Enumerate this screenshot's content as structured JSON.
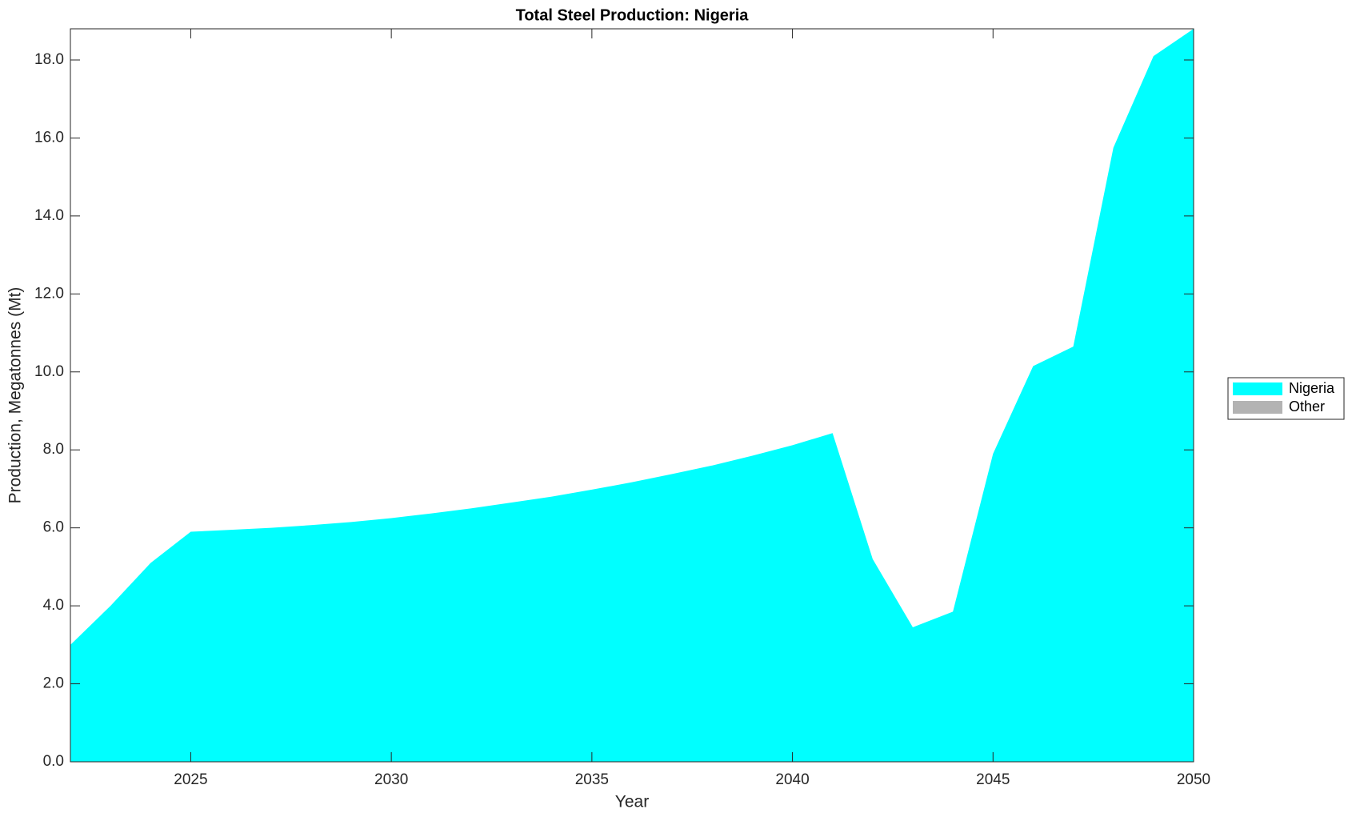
{
  "chart_data": {
    "type": "area",
    "title": "Total Steel Production: Nigeria",
    "xlabel": "Year",
    "ylabel": "Production, Megatonnes (Mt)",
    "x": [
      2022,
      2023,
      2024,
      2025,
      2026,
      2027,
      2028,
      2029,
      2030,
      2031,
      2032,
      2033,
      2034,
      2035,
      2036,
      2037,
      2038,
      2039,
      2040,
      2041,
      2042,
      2043,
      2044,
      2045,
      2046,
      2047,
      2048,
      2049,
      2050
    ],
    "series": [
      {
        "name": "Nigeria",
        "color": "#00ffff",
        "values": [
          3.0,
          4.0,
          5.1,
          5.9,
          5.95,
          6.0,
          6.07,
          6.15,
          6.25,
          6.37,
          6.5,
          6.65,
          6.8,
          6.98,
          7.17,
          7.38,
          7.6,
          7.85,
          8.12,
          8.43,
          5.2,
          3.45,
          3.85,
          7.9,
          10.15,
          10.65,
          15.75,
          18.1,
          18.8
        ]
      },
      {
        "name": "Other",
        "color": "#b3b3b3",
        "values": [
          0,
          0,
          0,
          0,
          0,
          0,
          0,
          0,
          0,
          0,
          0,
          0,
          0,
          0,
          0,
          0,
          0,
          0,
          0,
          0,
          0,
          0,
          0,
          0,
          0,
          0,
          0,
          0,
          0
        ]
      }
    ],
    "xlim": [
      2022,
      2050
    ],
    "xticks": [
      2025,
      2030,
      2035,
      2040,
      2045,
      2050
    ],
    "ylim": [
      0,
      18.8
    ],
    "yticks": [
      {
        "value": 0,
        "label": "0.0"
      },
      {
        "value": 2,
        "label": "2.0"
      },
      {
        "value": 4,
        "label": "4.0"
      },
      {
        "value": 6,
        "label": "6.0"
      },
      {
        "value": 8,
        "label": "8.0"
      },
      {
        "value": 10,
        "label": "10.0"
      },
      {
        "value": 12,
        "label": "12.0"
      },
      {
        "value": 14,
        "label": "14.0"
      },
      {
        "value": 16,
        "label": "16.0"
      },
      {
        "value": 18,
        "label": "18.0"
      }
    ],
    "legend": "outside-right"
  }
}
